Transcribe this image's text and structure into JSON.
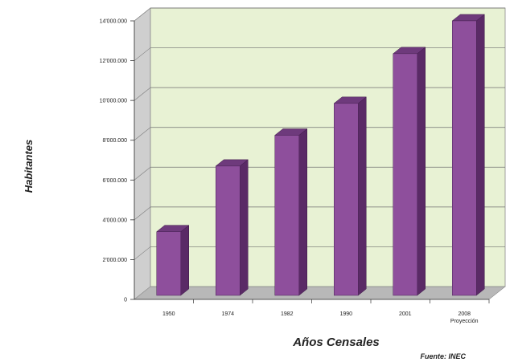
{
  "chart_data": {
    "type": "bar",
    "categories": [
      "1950",
      "1974",
      "1982",
      "1990",
      "2001",
      "2008"
    ],
    "category_notes": [
      "",
      "",
      "",
      "",
      "",
      "Proyección"
    ],
    "values": [
      3200000,
      6500000,
      8050000,
      9650000,
      12150000,
      13800000
    ],
    "yticks": [
      "0",
      "2'000.000",
      "4'000.000",
      "6'000.000",
      "8'000.000",
      "10'000.000",
      "12'000.000",
      "14'000.000"
    ],
    "ylim": [
      0,
      14000000
    ],
    "xlabel": "Años Censales",
    "ylabel": "Habitantes",
    "source": "Fuente: INEC",
    "grid": true,
    "legend": "none",
    "style": "3d",
    "colors": {
      "bar_front": "#8e4f9c",
      "bar_side": "#5a2a66",
      "bar_top": "#6e3a7c",
      "plot_back": "#e8f2d4",
      "wall_side": "#cfcfcf",
      "floor": "#b8b8b8"
    }
  }
}
